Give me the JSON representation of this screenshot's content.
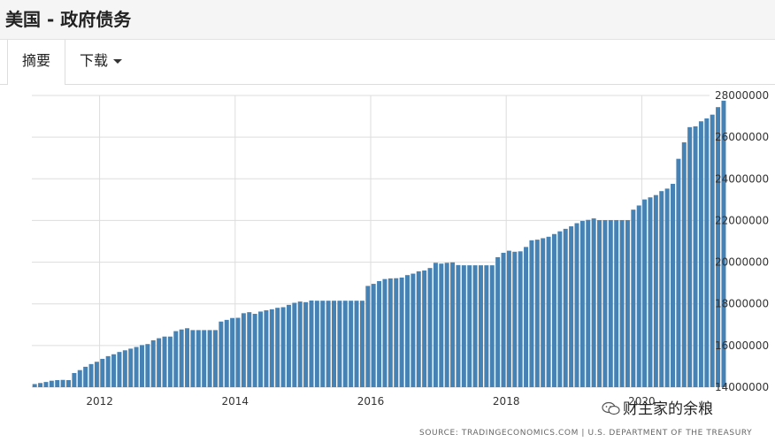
{
  "header": {
    "title": "美国 - 政府债务"
  },
  "tabs": {
    "summary": "摘要",
    "download": "下载"
  },
  "source": "SOURCE: TRADINGECONOMICS.COM  |  U.S. DEPARTMENT OF THE TREASURY",
  "watermark": {
    "text": "财主家的余粮",
    "icon": "wechat-icon"
  },
  "colors": {
    "bar": "#4682b4",
    "grid": "#dddddd"
  },
  "chart_data": {
    "type": "bar",
    "title": "",
    "xlabel": "",
    "ylabel": "",
    "x_start": "2011-01",
    "x_end": "2020-12",
    "x_ticks": [
      "2012",
      "2014",
      "2016",
      "2018",
      "2020"
    ],
    "ylim": [
      14000000,
      28000000
    ],
    "y_ticks": [
      "14000000",
      "16000000",
      "18000000",
      "20000000",
      "22000000",
      "24000000",
      "26000000",
      "28000000"
    ],
    "grid": true,
    "series": [
      {
        "values": [
          14150000,
          14200000,
          14250000,
          14310000,
          14340000,
          14350000,
          14340000,
          14680000,
          14820000,
          14980000,
          15110000,
          15220000,
          15360000,
          15490000,
          15580000,
          15690000,
          15770000,
          15850000,
          15930000,
          16020000,
          16070000,
          16250000,
          16350000,
          16430000,
          16430000,
          16690000,
          16770000,
          16830000,
          16740000,
          16740000,
          16740000,
          16740000,
          16740000,
          17150000,
          17230000,
          17320000,
          17330000,
          17550000,
          17600000,
          17520000,
          17630000,
          17690000,
          17740000,
          17810000,
          17840000,
          17950000,
          18050000,
          18110000,
          18080000,
          18160000,
          18150000,
          18150000,
          18150000,
          18150000,
          18150000,
          18150000,
          18150000,
          18150000,
          18150000,
          18860000,
          18960000,
          19090000,
          19190000,
          19220000,
          19230000,
          19260000,
          19380000,
          19450000,
          19560000,
          19600000,
          19720000,
          19970000,
          19930000,
          19970000,
          19990000,
          19860000,
          19850000,
          19850000,
          19850000,
          19850000,
          19850000,
          19850000,
          20240000,
          20450000,
          20550000,
          20500000,
          20520000,
          20730000,
          21050000,
          21080000,
          21150000,
          21220000,
          21350000,
          21480000,
          21600000,
          21720000,
          21870000,
          21980000,
          22030000,
          22100000,
          22020000,
          22020000,
          22020000,
          22020000,
          22020000,
          22020000,
          22520000,
          22720000,
          23010000,
          23110000,
          23220000,
          23410000,
          23530000,
          23760000,
          24960000,
          25750000,
          26480000,
          26520000,
          26760000,
          26900000,
          27080000,
          27440000,
          27750000
        ]
      }
    ]
  }
}
